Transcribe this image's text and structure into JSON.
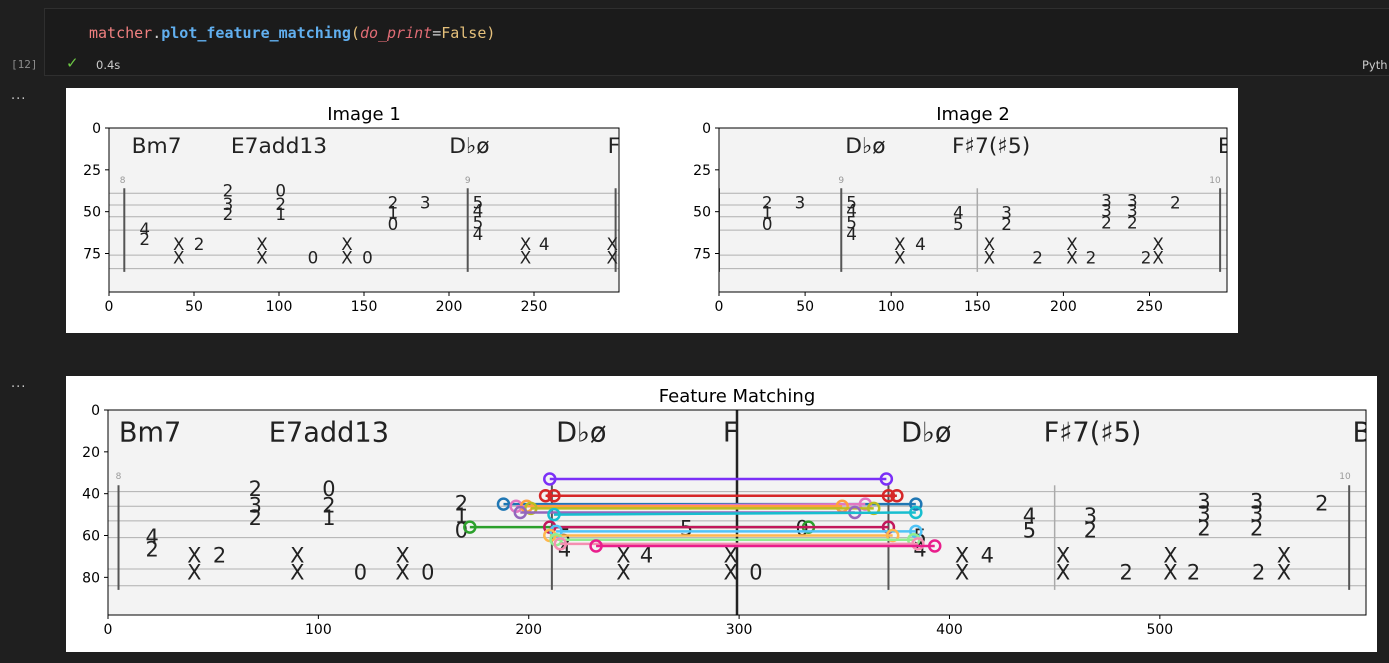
{
  "cell": {
    "code": {
      "object": "matcher",
      "dot": ".",
      "method": "plot_feature_matching",
      "open": "(",
      "param": "do_print",
      "eq": "=",
      "value": "False",
      "close": ")"
    },
    "exec_count": "[12]",
    "status_icon": "check-icon",
    "duration": "0.4s",
    "language": "Pyth"
  },
  "outputs": {
    "more_1": "...",
    "more_2": "..."
  },
  "colors": {
    "background": "#1f1f1f",
    "cell_border": "#2f2f2f",
    "code_object": "#f08080",
    "code_method": "#61afef",
    "code_param": "#e06c75",
    "code_value": "#e5c07b",
    "success": "#6cc644"
  },
  "staff": {
    "chord_names_1": [
      "Bm7",
      "E7add13",
      "D♭ø",
      "F"
    ],
    "chord_names_2": [
      "D♭ø",
      "F♯7(♯5)",
      "B"
    ],
    "measure_nums": [
      "8",
      "9",
      "10"
    ]
  },
  "chart_data": [
    {
      "type": "image",
      "title": "Image 1",
      "xticks": [
        "0",
        "50",
        "100",
        "150",
        "200",
        "250"
      ],
      "yticks": [
        "0",
        "25",
        "50",
        "75"
      ],
      "xlim": [
        0,
        300
      ],
      "ylim": [
        98,
        0
      ]
    },
    {
      "type": "image",
      "title": "Image 2",
      "xticks": [
        "0",
        "50",
        "100",
        "150",
        "200",
        "250"
      ],
      "yticks": [
        "0",
        "25",
        "50",
        "75"
      ],
      "xlim": [
        0,
        295
      ],
      "ylim": [
        98,
        0
      ]
    },
    {
      "type": "image",
      "title": "Feature Matching",
      "xticks": [
        "0",
        "100",
        "200",
        "300",
        "400",
        "500"
      ],
      "yticks": [
        "0",
        "20",
        "40",
        "60",
        "80"
      ],
      "xlim": [
        0,
        598
      ],
      "ylim": [
        98,
        0
      ],
      "matches": [
        {
          "x1": 210,
          "y1": 33,
          "x2": 370,
          "y2": 33,
          "color": "#7b2ff7"
        },
        {
          "x1": 208,
          "y1": 41,
          "x2": 371,
          "y2": 41,
          "color": "#d62728"
        },
        {
          "x1": 212,
          "y1": 41,
          "x2": 375,
          "y2": 41,
          "color": "#d62728"
        },
        {
          "x1": 188,
          "y1": 45,
          "x2": 384,
          "y2": 45,
          "color": "#1f77b4"
        },
        {
          "x1": 194,
          "y1": 46,
          "x2": 360,
          "y2": 45,
          "color": "#e377c2"
        },
        {
          "x1": 199,
          "y1": 46,
          "x2": 349,
          "y2": 46,
          "color": "#ff9f40"
        },
        {
          "x1": 201,
          "y1": 47,
          "x2": 364,
          "y2": 47,
          "color": "#bcbd22"
        },
        {
          "x1": 196,
          "y1": 49,
          "x2": 355,
          "y2": 49,
          "color": "#9467bd"
        },
        {
          "x1": 212,
          "y1": 50,
          "x2": 384,
          "y2": 49,
          "color": "#17becf"
        },
        {
          "x1": 172,
          "y1": 56,
          "x2": 333,
          "y2": 56,
          "color": "#2ca02c"
        },
        {
          "x1": 210,
          "y1": 56,
          "x2": 371,
          "y2": 56,
          "color": "#c2185b"
        },
        {
          "x1": 213,
          "y1": 58,
          "x2": 384,
          "y2": 58,
          "color": "#4fc3f7"
        },
        {
          "x1": 210,
          "y1": 60,
          "x2": 373,
          "y2": 60,
          "color": "#ffb74d"
        },
        {
          "x1": 213,
          "y1": 62,
          "x2": 383,
          "y2": 62,
          "color": "#90ee90"
        },
        {
          "x1": 215,
          "y1": 64,
          "x2": 385,
          "y2": 64,
          "color": "#f48fb1"
        },
        {
          "x1": 232,
          "y1": 65,
          "x2": 393,
          "y2": 65,
          "color": "#e91e8c"
        }
      ]
    }
  ]
}
